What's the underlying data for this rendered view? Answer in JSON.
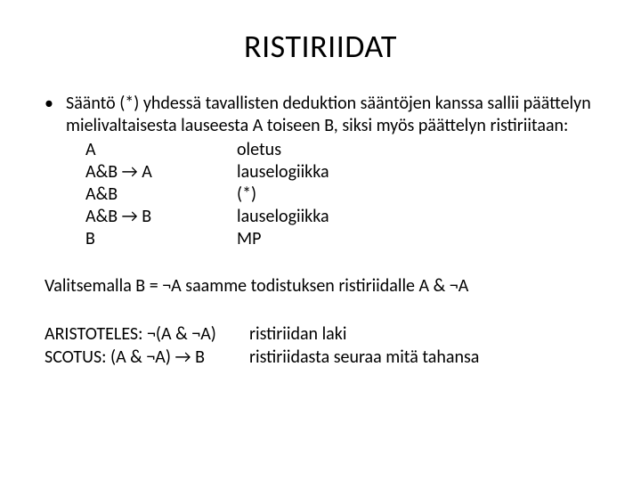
{
  "title": "RISTIRIIDAT",
  "intro": "Sääntö (*) yhdessä tavallisten deduktion sääntöjen kanssa sallii päättelyn mielivaltaisesta lauseesta A toiseen B, siksi myös päättelyn ristiriitaan:",
  "rows": [
    {
      "left": "A",
      "right": "oletus"
    },
    {
      "left": "A&B → A",
      "right": "lauselogiikka"
    },
    {
      "left": "A&B",
      "right": "(*)"
    },
    {
      "left": "A&B → B",
      "right": "lauselogiikka"
    },
    {
      "left": "B",
      "right": "MP"
    }
  ],
  "conclusion": "Valitsemalla B = ¬A saamme todistuksen ristiriidalle  A & ¬A",
  "laws": [
    {
      "name": "ARISTOTELES: ¬(A & ¬A)",
      "desc": "ristiriidan laki"
    },
    {
      "name": "SCOTUS: (A & ¬A) → B",
      "desc": "ristiriidasta seuraa mitä tahansa"
    }
  ]
}
